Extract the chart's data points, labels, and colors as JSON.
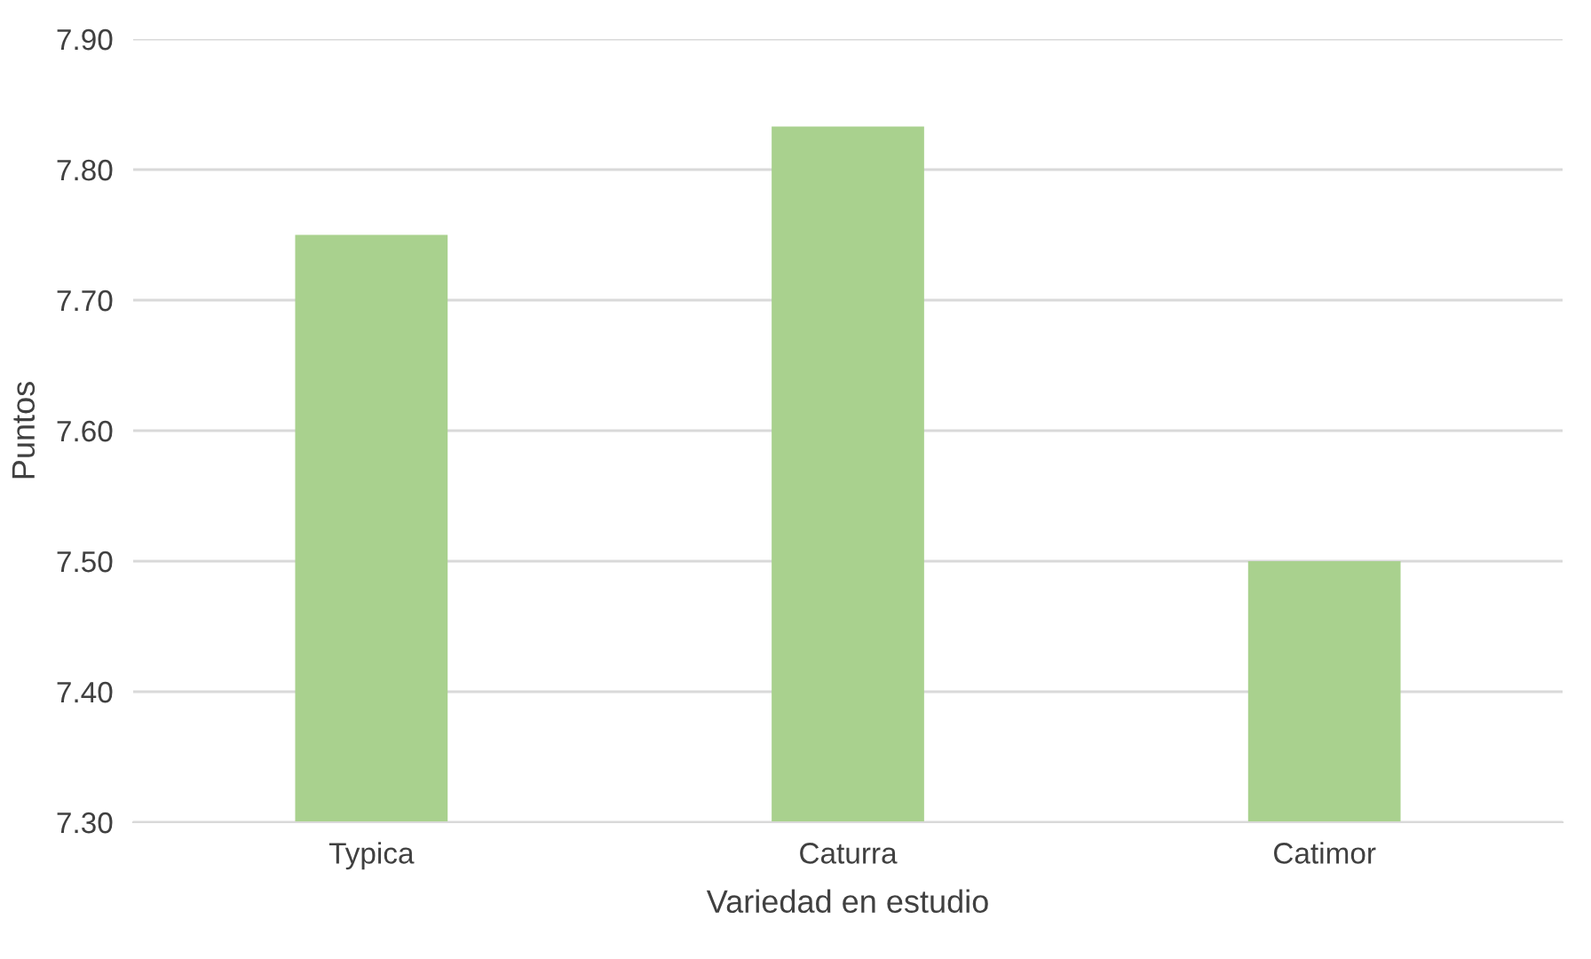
{
  "chart_data": {
    "type": "bar",
    "xlabel": "Variedad en estudio",
    "ylabel": "Puntos",
    "categories": [
      "Typica",
      "Caturra",
      "Catimor"
    ],
    "values": [
      7.75,
      7.833,
      7.5
    ],
    "color": "#a9d18e",
    "ylim": [
      7.3,
      7.9
    ],
    "yticks": [
      {
        "value": 7.3,
        "label": "7.30"
      },
      {
        "value": 7.4,
        "label": "7.40"
      },
      {
        "value": 7.5,
        "label": "7.50"
      },
      {
        "value": 7.6,
        "label": "7.60"
      },
      {
        "value": 7.7,
        "label": "7.70"
      },
      {
        "value": 7.8,
        "label": "7.80"
      },
      {
        "value": 7.9,
        "label": "7.90"
      }
    ],
    "grid": "y",
    "legend": false
  }
}
